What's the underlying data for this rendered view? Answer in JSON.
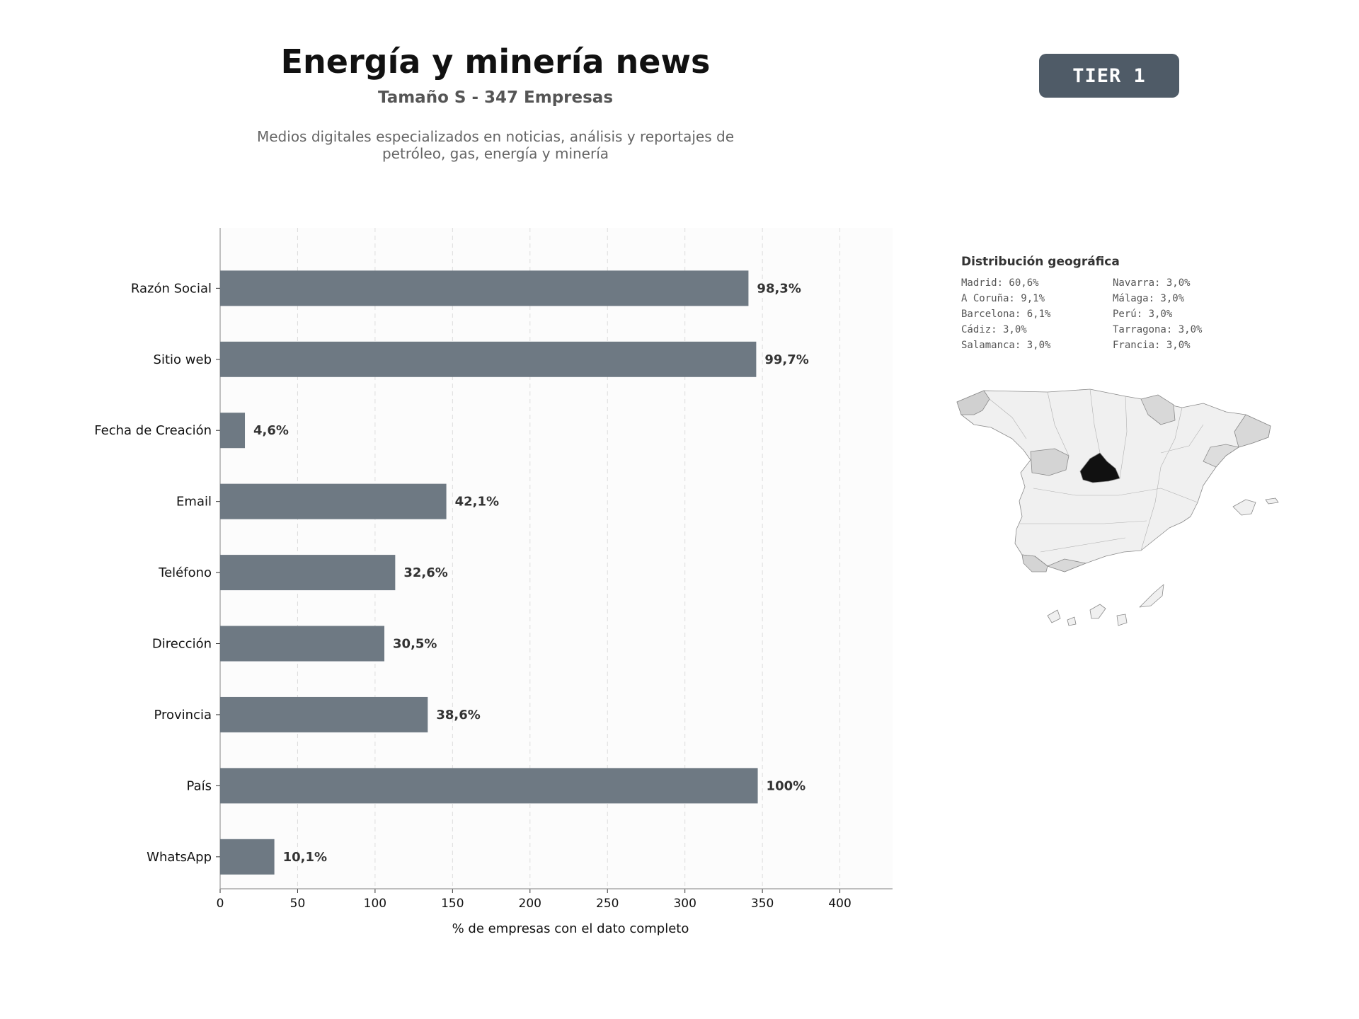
{
  "header": {
    "title": "Energía y minería news",
    "subtitle": "Tamaño S - 347 Empresas",
    "description_line1": "Medios digitales especializados en noticias, análisis y reportajes de",
    "description_line2": "petróleo, gas, energía y minería"
  },
  "badge": {
    "label": "TIER 1",
    "color": "#4f5b67"
  },
  "chart_data": {
    "type": "bar",
    "orientation": "horizontal",
    "categories": [
      "Razón Social",
      "Sitio web",
      "Fecha de Creación",
      "Email",
      "Teléfono",
      "Dirección",
      "Provincia",
      "País",
      "WhatsApp"
    ],
    "values": [
      341,
      346,
      16,
      146,
      113,
      106,
      134,
      347,
      35
    ],
    "value_labels": [
      "98,3%",
      "99,7%",
      "4,6%",
      "42,1%",
      "32,6%",
      "30,5%",
      "38,6%",
      "100%",
      "10,1%"
    ],
    "xlabel": "% de empresas con el dato completo",
    "xticks": [
      "0",
      "50",
      "100",
      "150",
      "200",
      "250",
      "300",
      "350",
      "400"
    ],
    "xlim": [
      0,
      434
    ],
    "grid": "vertical dashed",
    "bar_color": "#6e7983"
  },
  "geo": {
    "title": "Distribución geográfica",
    "items": [
      "Madrid: 60,6%",
      "Navarra: 3,0%",
      "A Coruña: 9,1%",
      "Málaga: 3,0%",
      "Barcelona: 6,1%",
      "Perú: 3,0%",
      "Cádiz: 3,0%",
      "Tarragona: 3,0%",
      "Salamanca: 3,0%",
      "Francia: 3,0%"
    ]
  }
}
